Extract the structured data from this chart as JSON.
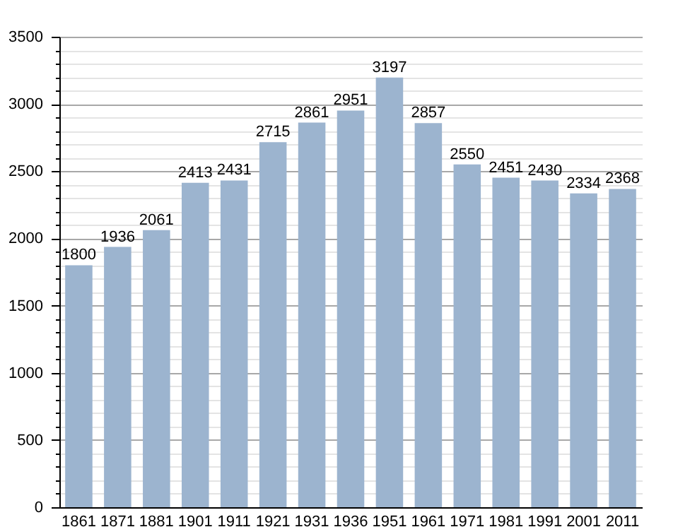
{
  "chart_data": {
    "type": "bar",
    "categories": [
      "1861",
      "1871",
      "1881",
      "1901",
      "1911",
      "1921",
      "1931",
      "1936",
      "1951",
      "1961",
      "1971",
      "1981",
      "1991",
      "2001",
      "2011"
    ],
    "values": [
      1800,
      1936,
      2061,
      2413,
      2431,
      2715,
      2861,
      2951,
      3197,
      2857,
      2550,
      2451,
      2430,
      2334,
      2368
    ],
    "color": "#9cb4cf",
    "ylim": [
      0,
      3500
    ],
    "yticks": [
      0,
      {
        "value": 100,
        "label": null
      },
      {
        "value": 200,
        "label": null
      },
      {
        "value": 300,
        "label": null
      },
      {
        "value": 400,
        "label": null
      },
      500,
      {
        "value": 600,
        "label": null
      },
      {
        "value": 700,
        "label": null
      },
      {
        "value": 800,
        "label": null
      },
      {
        "value": 900,
        "label": null
      },
      1000,
      {
        "value": 1100,
        "label": null
      },
      {
        "value": 1200,
        "label": null
      },
      {
        "value": 1300,
        "label": null
      },
      {
        "value": 1400,
        "label": null
      },
      1500,
      {
        "value": 1600,
        "label": null
      },
      {
        "value": 1700,
        "label": null
      },
      {
        "value": 1800,
        "label": null
      },
      {
        "value": 1900,
        "label": null
      },
      2000,
      {
        "value": 2100,
        "label": null
      },
      {
        "value": 2200,
        "label": null
      },
      {
        "value": 2300,
        "label": null
      },
      {
        "value": 2400,
        "label": null
      },
      2500,
      {
        "value": 2600,
        "label": null
      },
      {
        "value": 2700,
        "label": null
      },
      {
        "value": 2800,
        "label": null
      },
      {
        "value": 2900,
        "label": null
      },
      3000,
      {
        "value": 3100,
        "label": null
      },
      {
        "value": 3200,
        "label": null
      },
      {
        "value": 3300,
        "label": null
      },
      {
        "value": 3400,
        "label": null
      },
      3500
    ],
    "grid": true,
    "data_labels": true
  }
}
